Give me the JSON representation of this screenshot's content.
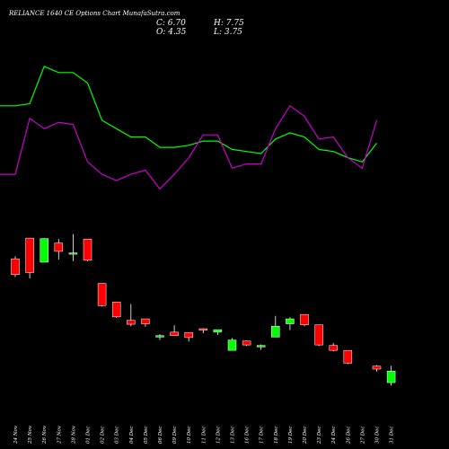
{
  "chart_data": {
    "type": "candlestick",
    "title": "RELIANCE 1640  CE Options  Chart MunafaSutra.com",
    "ohlc_labels": {
      "close": "C: 6.70",
      "high": "H: 7.75",
      "open": "O: 4.35",
      "low": "L: 3.75"
    },
    "categories": [
      "24 Nov",
      "25 Nov",
      "26 Nov",
      "27 Nov",
      "28 Nov",
      "01 Dec",
      "02 Dec",
      "03 Dec",
      "04 Dec",
      "05 Dec",
      "06 Dec",
      "09 Dec",
      "10 Dec",
      "11 Dec",
      "12 Dec",
      "13 Dec",
      "16 Dec",
      "17 Dec",
      "18 Dec",
      "19 Dec",
      "20 Dec",
      "23 Dec",
      "24 Dec",
      "26 Dec",
      "27 Dec",
      "30 Dec",
      "31 Dec"
    ],
    "candles": [
      {
        "open": 29.5,
        "high": 30.0,
        "low": 25.8,
        "close": 26.3
      },
      {
        "open": 33.7,
        "high": 33.7,
        "low": 25.5,
        "close": 26.7
      },
      {
        "open": 28.8,
        "high": 33.7,
        "low": 28.8,
        "close": 33.6
      },
      {
        "open": 32.7,
        "high": 33.5,
        "low": 29.3,
        "close": 31.0
      },
      {
        "open": 30.7,
        "high": 34.5,
        "low": 29.0,
        "close": 30.7
      },
      {
        "open": 33.5,
        "high": 33.5,
        "low": 29.0,
        "close": 29.2
      },
      {
        "open": 24.5,
        "high": 24.5,
        "low": 19.8,
        "close": 20.0
      },
      {
        "open": 20.7,
        "high": 20.7,
        "low": 17.5,
        "close": 17.7
      },
      {
        "open": 17.0,
        "high": 20.3,
        "low": 15.8,
        "close": 16.2
      },
      {
        "open": 17.3,
        "high": 17.3,
        "low": 15.7,
        "close": 16.3
      },
      {
        "open": 13.6,
        "high": 14.2,
        "low": 13.0,
        "close": 13.9
      },
      {
        "open": 14.6,
        "high": 16.0,
        "low": 13.9,
        "close": 13.9
      },
      {
        "open": 14.5,
        "high": 14.5,
        "low": 12.7,
        "close": 13.5
      },
      {
        "open": 15.3,
        "high": 15.4,
        "low": 14.4,
        "close": 15.0
      },
      {
        "open": 14.6,
        "high": 15.1,
        "low": 14.0,
        "close": 15.1
      },
      {
        "open": 10.9,
        "high": 13.4,
        "low": 10.9,
        "close": 13.0
      },
      {
        "open": 12.8,
        "high": 12.9,
        "low": 11.8,
        "close": 12.0
      },
      {
        "open": 11.6,
        "high": 12.1,
        "low": 11.0,
        "close": 11.9
      },
      {
        "open": 13.6,
        "high": 17.9,
        "low": 13.6,
        "close": 15.8
      },
      {
        "open": 16.3,
        "high": 17.6,
        "low": 15.0,
        "close": 17.3
      },
      {
        "open": 18.2,
        "high": 18.2,
        "low": 15.8,
        "close": 16.1
      },
      {
        "open": 16.1,
        "high": 16.1,
        "low": 11.8,
        "close": 12.0
      },
      {
        "open": 11.9,
        "high": 12.4,
        "low": 10.7,
        "close": 10.9
      },
      {
        "open": 10.9,
        "high": 10.9,
        "low": 8.1,
        "close": 8.3
      },
      {
        "open": 7.7,
        "high": 7.9,
        "low": 6.6,
        "close": 7.1
      },
      {
        "open": 4.35,
        "high": 7.75,
        "low": 3.75,
        "close": 6.7
      }
    ],
    "candle_day_index": [
      0,
      1,
      2,
      3,
      4,
      5,
      6,
      7,
      8,
      9,
      10,
      11,
      12,
      13,
      14,
      15,
      16,
      17,
      18,
      19,
      20,
      21,
      22,
      23,
      25,
      26
    ],
    "indicator_lines": [
      {
        "color": "#00ff00",
        "values": [
          55,
          55,
          56,
          74,
          71,
          71,
          66,
          48,
          44,
          40,
          40,
          35,
          35,
          36,
          38,
          38,
          34,
          33,
          32,
          39,
          42,
          40,
          34,
          33,
          30,
          28,
          37
        ]
      },
      {
        "color": "#cc00cc",
        "values": [
          22,
          22,
          49,
          44,
          47,
          46,
          28,
          22,
          19,
          22,
          24,
          15,
          22,
          30,
          41,
          41,
          25,
          27,
          27,
          44,
          55,
          50,
          39,
          40,
          30,
          25,
          48
        ]
      }
    ],
    "colors": {
      "up": "#00ff00",
      "down": "#ff0000",
      "background": "#000000"
    }
  }
}
